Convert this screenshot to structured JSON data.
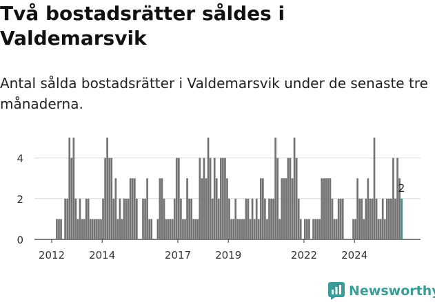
{
  "header": {
    "title": "Två bostadsrätter såldes i Valdemarsvik",
    "subtitle": "Antal sålda bostadsrätter i Valdemarsvik under de senaste tre månaderna."
  },
  "brand": {
    "name": "Newsworthy",
    "color": "#3a9c96",
    "icon": "newsworthy-chart-icon"
  },
  "colors": {
    "bar": "#737373",
    "highlight": "#2a9d8f",
    "grid": "#d9d9d9"
  },
  "chart_data": {
    "type": "bar",
    "title": "",
    "xlabel": "",
    "ylabel": "",
    "ylim": [
      0,
      5
    ],
    "yticks": [
      0,
      2,
      4
    ],
    "xtick_labels": [
      "2012",
      "2014",
      "2017",
      "2019",
      "2022",
      "2024"
    ],
    "grid": true,
    "x_start": "2012-01",
    "highlight_label": "2",
    "values": [
      null,
      null,
      1,
      1,
      1,
      null,
      2,
      2,
      5,
      4,
      5,
      2,
      1,
      2,
      1,
      1,
      2,
      2,
      1,
      1,
      1,
      1,
      1,
      1,
      2,
      4,
      5,
      4,
      4,
      2,
      3,
      1,
      2,
      1,
      2,
      2,
      2,
      3,
      3,
      3,
      2,
      null,
      null,
      2,
      2,
      3,
      1,
      1,
      null,
      null,
      1,
      3,
      3,
      2,
      1,
      1,
      1,
      1,
      2,
      4,
      4,
      2,
      1,
      1,
      3,
      2,
      2,
      1,
      1,
      1,
      4,
      3,
      4,
      3,
      5,
      4,
      2,
      4,
      3,
      2,
      4,
      4,
      4,
      3,
      2,
      1,
      1,
      2,
      1,
      1,
      1,
      1,
      2,
      2,
      1,
      2,
      1,
      2,
      1,
      3,
      3,
      2,
      1,
      2,
      2,
      2,
      5,
      4,
      1,
      3,
      3,
      3,
      4,
      4,
      3,
      5,
      4,
      2,
      1,
      null,
      1,
      1,
      1,
      null,
      1,
      1,
      1,
      1,
      3,
      3,
      3,
      3,
      3,
      2,
      1,
      1,
      2,
      2,
      2,
      null,
      null,
      null,
      null,
      1,
      1,
      3,
      2,
      2,
      1,
      2,
      3,
      2,
      2,
      5,
      2,
      1,
      1,
      2,
      1,
      2,
      2,
      2,
      4,
      2,
      4,
      3,
      2
    ]
  }
}
